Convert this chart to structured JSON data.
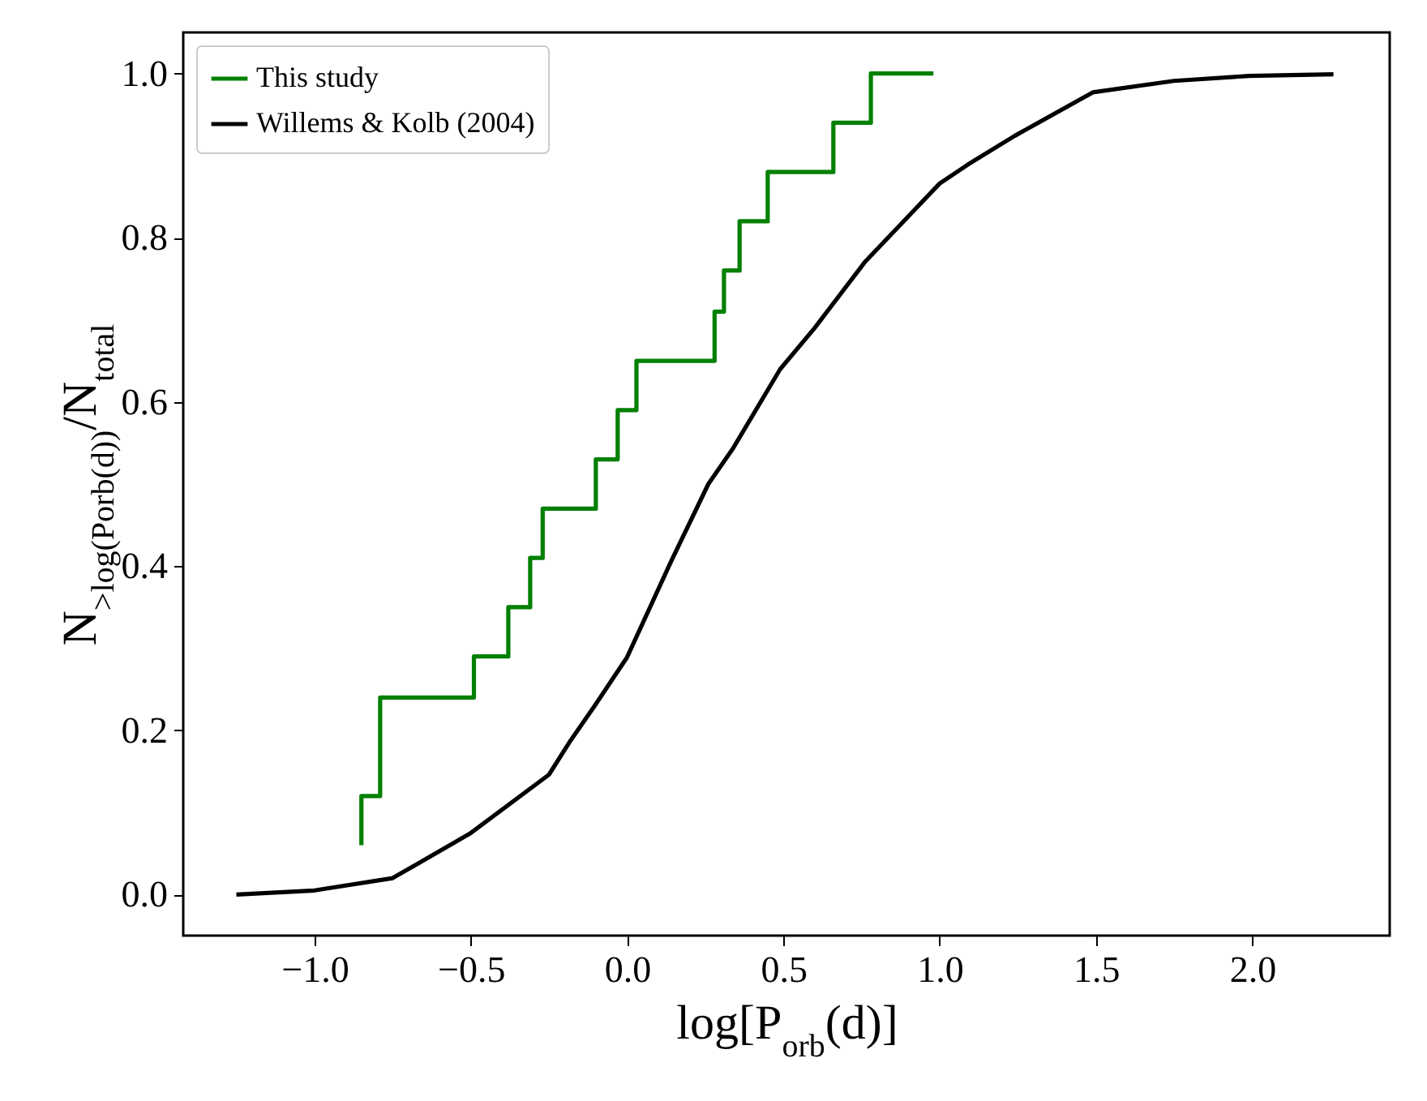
{
  "chart_data": {
    "type": "line",
    "xlabel": "log[P$_{orb}$(d)]",
    "ylabel": "N$_{>log(Porb(d))}$/N$_{total}$",
    "xlim": [
      -1.42,
      2.44
    ],
    "ylim": [
      -0.05,
      1.05
    ],
    "xticks": [
      {
        "value": -1,
        "label": "−1.0"
      },
      {
        "value": -0.5,
        "label": "−0.5"
      },
      {
        "value": 0,
        "label": "0.0"
      },
      {
        "value": 0.5,
        "label": "0.5"
      },
      {
        "value": 1,
        "label": "1.0"
      },
      {
        "value": 1.5,
        "label": "1.5"
      },
      {
        "value": 2,
        "label": "2.0"
      }
    ],
    "yticks": [
      {
        "value": 0,
        "label": "0.0"
      },
      {
        "value": 0.2,
        "label": "0.2"
      },
      {
        "value": 0.4,
        "label": "0.4"
      },
      {
        "value": 0.6,
        "label": "0.6"
      },
      {
        "value": 0.8,
        "label": "0.8"
      },
      {
        "value": 1,
        "label": "1.0"
      }
    ],
    "grid": false,
    "legend": "top left",
    "series": [
      {
        "name": "This study",
        "type": "step",
        "color": "#008000",
        "x": [
          -0.85,
          -0.85,
          -0.79,
          -0.49,
          -0.38,
          -0.31,
          -0.27,
          -0.1,
          -0.03,
          0.03,
          0.28,
          0.31,
          0.36,
          0.45,
          0.66,
          0.78,
          0.98
        ],
        "values": [
          0.06,
          0.12,
          0.24,
          0.29,
          0.35,
          0.41,
          0.47,
          0.53,
          0.59,
          0.65,
          0.71,
          0.76,
          0.82,
          0.88,
          0.94,
          1.0,
          1.0
        ]
      },
      {
        "name": "Willems & Kolb (2004)",
        "color": "#000000",
        "x": [
          -1.25,
          -1.0,
          -0.75,
          -0.5,
          -0.25,
          -0.18,
          -0.1,
          0.0,
          0.14,
          0.26,
          0.34,
          0.49,
          0.6,
          0.76,
          1.0,
          1.09,
          1.24,
          1.49,
          1.75,
          1.99,
          2.26
        ],
        "values": [
          0.0,
          0.005,
          0.02,
          0.075,
          0.146,
          0.188,
          0.232,
          0.289,
          0.405,
          0.5,
          0.544,
          0.64,
          0.69,
          0.77,
          0.866,
          0.889,
          0.924,
          0.977,
          0.991,
          0.997,
          0.999
        ]
      }
    ]
  }
}
